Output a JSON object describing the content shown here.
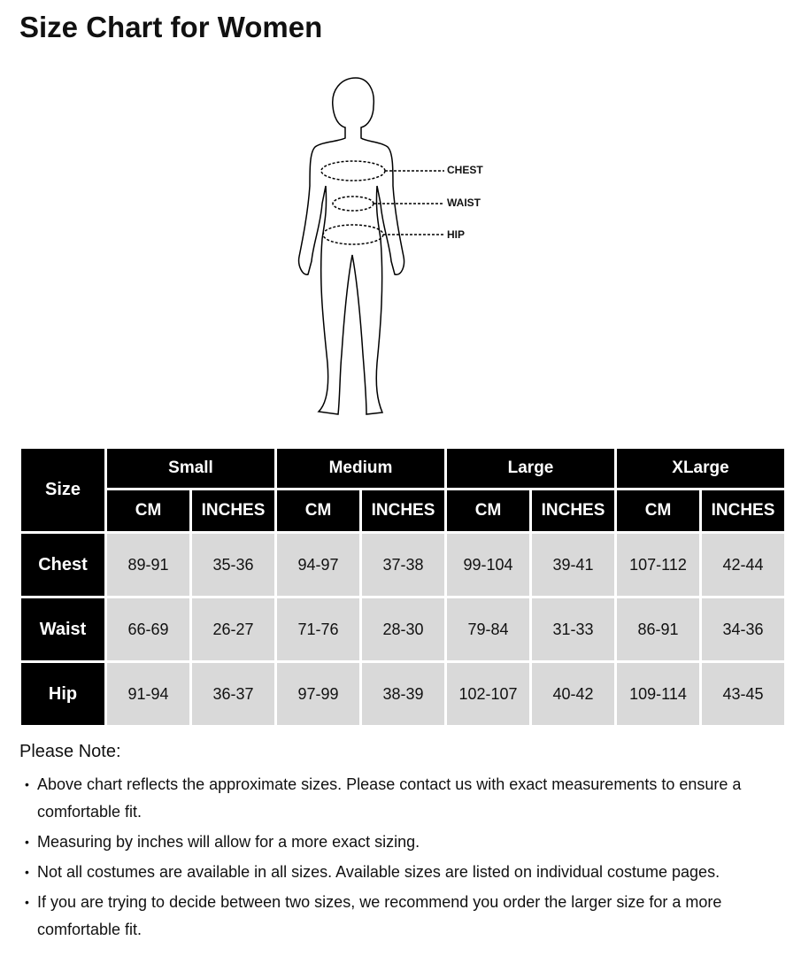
{
  "title": "Size Chart for Women",
  "figure": {
    "labels": [
      "CHEST",
      "WAIST",
      "HIP"
    ]
  },
  "table": {
    "corner": "Size",
    "sizes": [
      "Small",
      "Medium",
      "Large",
      "XLarge"
    ],
    "units": [
      "CM",
      "INCHES"
    ],
    "rows": [
      {
        "label": "Chest",
        "values": [
          "89-91",
          "35-36",
          "94-97",
          "37-38",
          "99-104",
          "39-41",
          "107-112",
          "42-44"
        ]
      },
      {
        "label": "Waist",
        "values": [
          "66-69",
          "26-27",
          "71-76",
          "28-30",
          "79-84",
          "31-33",
          "86-91",
          "34-36"
        ]
      },
      {
        "label": "Hip",
        "values": [
          "91-94",
          "36-37",
          "97-99",
          "38-39",
          "102-107",
          "40-42",
          "109-114",
          "43-45"
        ]
      }
    ]
  },
  "notes": {
    "title": "Please Note:",
    "items": [
      "Above chart reflects the approximate sizes. Please contact us with exact measurements to ensure a comfortable fit.",
      "Measuring by inches will allow for a more exact sizing.",
      "Not all costumes are available in all sizes. Available sizes are listed on individual costume pages.",
      "If you are trying to decide between two sizes, we recommend you order the larger size for a more comfortable fit."
    ]
  }
}
